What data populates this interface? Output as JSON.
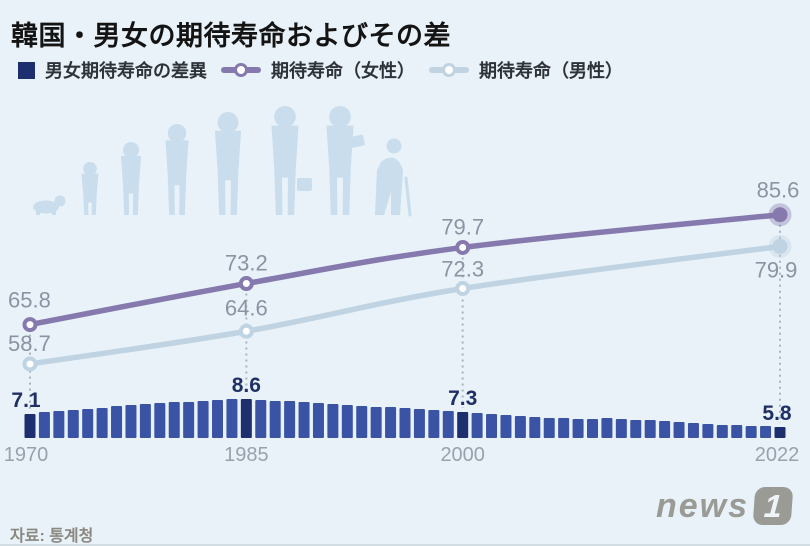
{
  "title": "韓国・男女の期待寿命およびその差",
  "legend": {
    "diff": {
      "label": "男女期待寿命の差異",
      "color": "#1d2f6f"
    },
    "female": {
      "label": "期待寿命（女性）",
      "color": "#8579ad"
    },
    "male": {
      "label": "期待寿命（男性）",
      "color": "#bfd3e2"
    }
  },
  "source": "자료: 통계청",
  "logo": {
    "text": "news",
    "badge": "1"
  },
  "colors": {
    "background": "#e8f2f8",
    "bar": "#3a53a4",
    "bar_highlight": "#1d2f6f",
    "line_female": "#8579ad",
    "line_male": "#bfd3e2",
    "line_label": "#8b94a3",
    "bar_label": "#203064",
    "year_label": "#99a2ac",
    "dotted_guide": "#a9b4c0",
    "silhouette": "#c9dded"
  },
  "chart_data": {
    "type": "combo",
    "title": "韓国・男女の期待寿命およびその差",
    "x_ticks": [
      1970,
      1985,
      2000,
      2022
    ],
    "y_axis_hidden": true,
    "grid": false,
    "lines": [
      {
        "name": "期待寿命（女性）",
        "type": "line",
        "color": "#8579ad",
        "years": [
          1970,
          1985,
          2000,
          2022
        ],
        "values": [
          65.8,
          73.2,
          79.7,
          85.6
        ]
      },
      {
        "name": "期待寿命（男性）",
        "type": "line",
        "color": "#bfd3e2",
        "years": [
          1970,
          1985,
          2000,
          2022
        ],
        "values": [
          58.7,
          64.6,
          72.3,
          79.9
        ]
      }
    ],
    "bars": {
      "name": "男女期待寿命の差異",
      "type": "bar",
      "color": "#3a53a4",
      "highlight_color": "#1d2f6f",
      "start_year": 1970,
      "values": [
        7.1,
        7.3,
        7.4,
        7.5,
        7.6,
        7.7,
        7.9,
        8.0,
        8.1,
        8.2,
        8.3,
        8.3,
        8.4,
        8.5,
        8.6,
        8.6,
        8.5,
        8.4,
        8.4,
        8.3,
        8.2,
        8.1,
        8.0,
        7.9,
        7.8,
        7.8,
        7.7,
        7.6,
        7.5,
        7.4,
        7.3,
        7.2,
        7.1,
        7.0,
        6.9,
        6.8,
        6.7,
        6.7,
        6.6,
        6.6,
        6.7,
        6.6,
        6.5,
        6.5,
        6.4,
        6.3,
        6.2,
        6.1,
        6.0,
        6.0,
        5.9,
        5.9,
        5.8
      ],
      "highlight_years": [
        1970,
        1985,
        2000,
        2022
      ],
      "labeled_values": {
        "1970": "7.1",
        "1985": "8.6",
        "2000": "7.3",
        "2022": "5.8"
      }
    }
  }
}
